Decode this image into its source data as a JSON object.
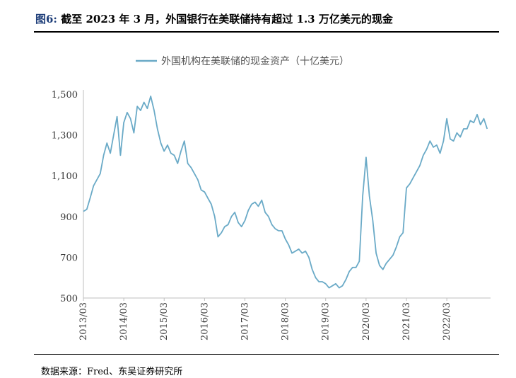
{
  "figure": {
    "label": "图6:",
    "title": "截至 2023 年 3 月，外国银行在美联储持有超过 1.3 万亿美元的现金",
    "source": "数据来源：Fred、东吴证券研究所"
  },
  "chart_data": {
    "type": "line",
    "title": "",
    "legend": [
      "外国机构在美联储的现金资产（十亿美元）"
    ],
    "legend_position": "top-center",
    "xlabel": "",
    "ylabel": "",
    "ylim": [
      500,
      1500
    ],
    "yticks": [
      500,
      700,
      900,
      1100,
      1300,
      1500
    ],
    "ytick_labels": [
      "500",
      "700",
      "900",
      "1,100",
      "1,300",
      "1,500"
    ],
    "xticks": [
      "2013/03",
      "2014/03",
      "2015/03",
      "2016/03",
      "2017/03",
      "2018/03",
      "2019/03",
      "2020/03",
      "2021/03",
      "2022/03"
    ],
    "grid": false,
    "line_color": "#6aaac7",
    "series": [
      {
        "name": "外国机构在美联储的现金资产（十亿美元）",
        "points": [
          [
            "2013/03",
            925
          ],
          [
            "2013/04",
            935
          ],
          [
            "2013/05",
            990
          ],
          [
            "2013/06",
            1050
          ],
          [
            "2013/07",
            1080
          ],
          [
            "2013/08",
            1110
          ],
          [
            "2013/09",
            1200
          ],
          [
            "2013/10",
            1260
          ],
          [
            "2013/11",
            1210
          ],
          [
            "2013/12",
            1300
          ],
          [
            "2014/01",
            1390
          ],
          [
            "2014/02",
            1200
          ],
          [
            "2014/03",
            1360
          ],
          [
            "2014/04",
            1410
          ],
          [
            "2014/05",
            1380
          ],
          [
            "2014/06",
            1310
          ],
          [
            "2014/07",
            1440
          ],
          [
            "2014/08",
            1420
          ],
          [
            "2014/09",
            1460
          ],
          [
            "2014/10",
            1430
          ],
          [
            "2014/11",
            1490
          ],
          [
            "2014/12",
            1420
          ],
          [
            "2015/01",
            1330
          ],
          [
            "2015/02",
            1260
          ],
          [
            "2015/03",
            1220
          ],
          [
            "2015/04",
            1250
          ],
          [
            "2015/05",
            1210
          ],
          [
            "2015/06",
            1200
          ],
          [
            "2015/07",
            1160
          ],
          [
            "2015/08",
            1220
          ],
          [
            "2015/09",
            1270
          ],
          [
            "2015/10",
            1160
          ],
          [
            "2015/11",
            1140
          ],
          [
            "2015/12",
            1110
          ],
          [
            "2016/01",
            1080
          ],
          [
            "2016/02",
            1030
          ],
          [
            "2016/03",
            1020
          ],
          [
            "2016/04",
            990
          ],
          [
            "2016/05",
            960
          ],
          [
            "2016/06",
            900
          ],
          [
            "2016/07",
            800
          ],
          [
            "2016/08",
            820
          ],
          [
            "2016/09",
            850
          ],
          [
            "2016/10",
            860
          ],
          [
            "2016/11",
            900
          ],
          [
            "2016/12",
            920
          ],
          [
            "2017/01",
            870
          ],
          [
            "2017/02",
            850
          ],
          [
            "2017/03",
            880
          ],
          [
            "2017/04",
            930
          ],
          [
            "2017/05",
            960
          ],
          [
            "2017/06",
            970
          ],
          [
            "2017/07",
            950
          ],
          [
            "2017/08",
            980
          ],
          [
            "2017/09",
            920
          ],
          [
            "2017/10",
            900
          ],
          [
            "2017/11",
            860
          ],
          [
            "2017/12",
            840
          ],
          [
            "2018/01",
            830
          ],
          [
            "2018/02",
            830
          ],
          [
            "2018/03",
            790
          ],
          [
            "2018/04",
            760
          ],
          [
            "2018/05",
            720
          ],
          [
            "2018/06",
            730
          ],
          [
            "2018/07",
            740
          ],
          [
            "2018/08",
            720
          ],
          [
            "2018/09",
            730
          ],
          [
            "2018/10",
            700
          ],
          [
            "2018/11",
            640
          ],
          [
            "2018/12",
            600
          ],
          [
            "2019/01",
            580
          ],
          [
            "2019/02",
            580
          ],
          [
            "2019/03",
            570
          ],
          [
            "2019/04",
            550
          ],
          [
            "2019/05",
            560
          ],
          [
            "2019/06",
            570
          ],
          [
            "2019/07",
            550
          ],
          [
            "2019/08",
            560
          ],
          [
            "2019/09",
            590
          ],
          [
            "2019/10",
            630
          ],
          [
            "2019/11",
            650
          ],
          [
            "2019/12",
            650
          ],
          [
            "2020/01",
            680
          ],
          [
            "2020/02",
            1000
          ],
          [
            "2020/03",
            1190
          ],
          [
            "2020/04",
            1000
          ],
          [
            "2020/05",
            880
          ],
          [
            "2020/06",
            720
          ],
          [
            "2020/07",
            660
          ],
          [
            "2020/08",
            640
          ],
          [
            "2020/09",
            670
          ],
          [
            "2020/10",
            690
          ],
          [
            "2020/11",
            710
          ],
          [
            "2020/12",
            750
          ],
          [
            "2021/01",
            800
          ],
          [
            "2021/02",
            820
          ],
          [
            "2021/03",
            1040
          ],
          [
            "2021/04",
            1060
          ],
          [
            "2021/05",
            1090
          ],
          [
            "2021/06",
            1120
          ],
          [
            "2021/07",
            1150
          ],
          [
            "2021/08",
            1200
          ],
          [
            "2021/09",
            1230
          ],
          [
            "2021/10",
            1270
          ],
          [
            "2021/11",
            1240
          ],
          [
            "2021/12",
            1250
          ],
          [
            "2022/01",
            1210
          ],
          [
            "2022/02",
            1270
          ],
          [
            "2022/03",
            1380
          ],
          [
            "2022/04",
            1280
          ],
          [
            "2022/05",
            1270
          ],
          [
            "2022/06",
            1310
          ],
          [
            "2022/07",
            1290
          ],
          [
            "2022/08",
            1330
          ],
          [
            "2022/09",
            1330
          ],
          [
            "2022/10",
            1370
          ],
          [
            "2022/11",
            1360
          ],
          [
            "2022/12",
            1400
          ],
          [
            "2023/01",
            1350
          ],
          [
            "2023/02",
            1380
          ],
          [
            "2023/03",
            1330
          ]
        ]
      }
    ]
  }
}
